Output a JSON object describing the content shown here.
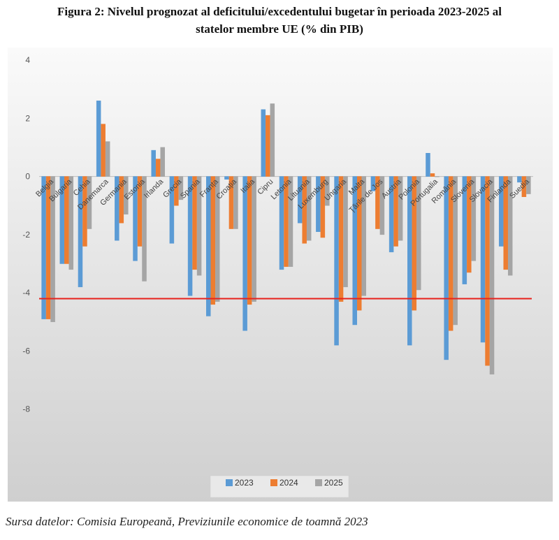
{
  "title_line1": "Figura 2: Nivelul prognozat al deficitului/excedentului bugetar în perioada 2023-2025 al",
  "title_line2": "statelor membre UE (% din PIB)",
  "source": "Sursa datelor: Comisia Europeană, Previziunile economice de toamnă 2023",
  "colors": {
    "2023": "#5b9bd5",
    "2024": "#ed7d31",
    "2025": "#a5a5a5",
    "reference_line": "#e8221c"
  },
  "chart_data": {
    "type": "bar",
    "categories": [
      "Belgia",
      "Bulgaria",
      "Cehia",
      "Danemarca",
      "Germania",
      "Estonia",
      "Irlanda",
      "Grecia",
      "Spania",
      "Franța",
      "Croația",
      "Italia",
      "Cipru",
      "Letonia",
      "Lituania",
      "Luxemburg",
      "Ungaria",
      "Malta",
      "Țările de Jos",
      "Austria",
      "Polonia",
      "Portugalia",
      "România",
      "Slovenia",
      "Slovacia",
      "Finlanda",
      "Suedia"
    ],
    "category_labels_visible": [
      "Belgia",
      "Bulgaria",
      "Cehia",
      "Danemarca",
      "Germania",
      "Estonia",
      "Irlanda",
      "Grecia",
      "Spania",
      "Franța",
      "Croația",
      "Italia",
      "Cipru",
      "Letonia",
      "Lituania",
      "Luxemburg",
      "Ungaria",
      "Malta",
      "Țările de Jos",
      "Austria",
      "Polonia",
      "Portugalia",
      "România",
      "Slovenia",
      "Slovacia",
      "Finlanda",
      "Suedia"
    ],
    "series": [
      {
        "name": "2023",
        "values": [
          -4.9,
          -3.0,
          -3.8,
          2.6,
          -2.2,
          -2.9,
          0.9,
          -2.3,
          -4.1,
          -4.8,
          -0.1,
          -5.3,
          2.3,
          -3.2,
          -1.6,
          -1.9,
          -5.8,
          -5.1,
          -0.5,
          -2.6,
          -5.8,
          0.8,
          -6.3,
          -3.7,
          -5.7,
          -2.4,
          -0.2
        ]
      },
      {
        "name": "2024",
        "values": [
          -4.9,
          -3.0,
          -2.4,
          1.8,
          -1.6,
          -2.4,
          0.6,
          -1.0,
          -3.2,
          -4.4,
          -1.8,
          -4.4,
          2.1,
          -3.1,
          -2.3,
          -2.1,
          -4.3,
          -4.6,
          -1.8,
          -2.4,
          -4.6,
          0.1,
          -5.3,
          -3.3,
          -6.5,
          -3.2,
          -0.7
        ]
      },
      {
        "name": "2025",
        "values": [
          -5.0,
          -3.2,
          -1.8,
          1.2,
          -1.3,
          -3.6,
          1.0,
          -0.8,
          -3.4,
          -4.3,
          -1.8,
          -4.3,
          2.5,
          -3.1,
          -2.2,
          -1.0,
          -3.8,
          -4.1,
          -2.0,
          -2.2,
          -3.9,
          0.0,
          -5.1,
          -2.9,
          -6.8,
          -3.4,
          -0.6
        ]
      }
    ],
    "reference_line": {
      "y_start": -4.2,
      "y_end": -4.2
    },
    "ylim": [
      -10,
      4
    ],
    "yticks": [
      4,
      2,
      0,
      -2,
      -4,
      -6,
      -8
    ],
    "grid": false,
    "legend_position": "bottom"
  }
}
